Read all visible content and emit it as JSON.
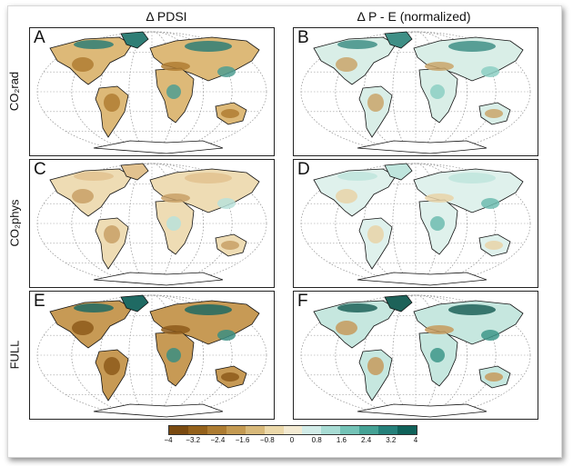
{
  "columns": [
    "Δ PDSI",
    "Δ P - E (normalized)"
  ],
  "rows": [
    "CO₂rad",
    "CO₂phys",
    "FULL"
  ],
  "panels": [
    {
      "letter": "A",
      "row": 0,
      "col": 0,
      "tone": "dry"
    },
    {
      "letter": "B",
      "row": 0,
      "col": 1,
      "tone": "wet"
    },
    {
      "letter": "C",
      "row": 1,
      "col": 0,
      "tone": "mild-dry"
    },
    {
      "letter": "D",
      "row": 1,
      "col": 1,
      "tone": "mild-wet"
    },
    {
      "letter": "E",
      "row": 2,
      "col": 0,
      "tone": "very-dry"
    },
    {
      "letter": "F",
      "row": 2,
      "col": 1,
      "tone": "very-wet"
    }
  ],
  "colorbar": {
    "ticks": [
      "−4",
      "−3.2",
      "−2.4",
      "−1.6",
      "−0.8",
      "0",
      "0.8",
      "1.6",
      "2.4",
      "3.2",
      "4"
    ],
    "colors": [
      "#7a4a10",
      "#94611b",
      "#ad7c32",
      "#c49a52",
      "#d8b97a",
      "#ecd9aa",
      "#f3ead2",
      "#d2ece8",
      "#a8dcd4",
      "#74c3b7",
      "#45a295",
      "#25807a",
      "#0f6159"
    ]
  }
}
